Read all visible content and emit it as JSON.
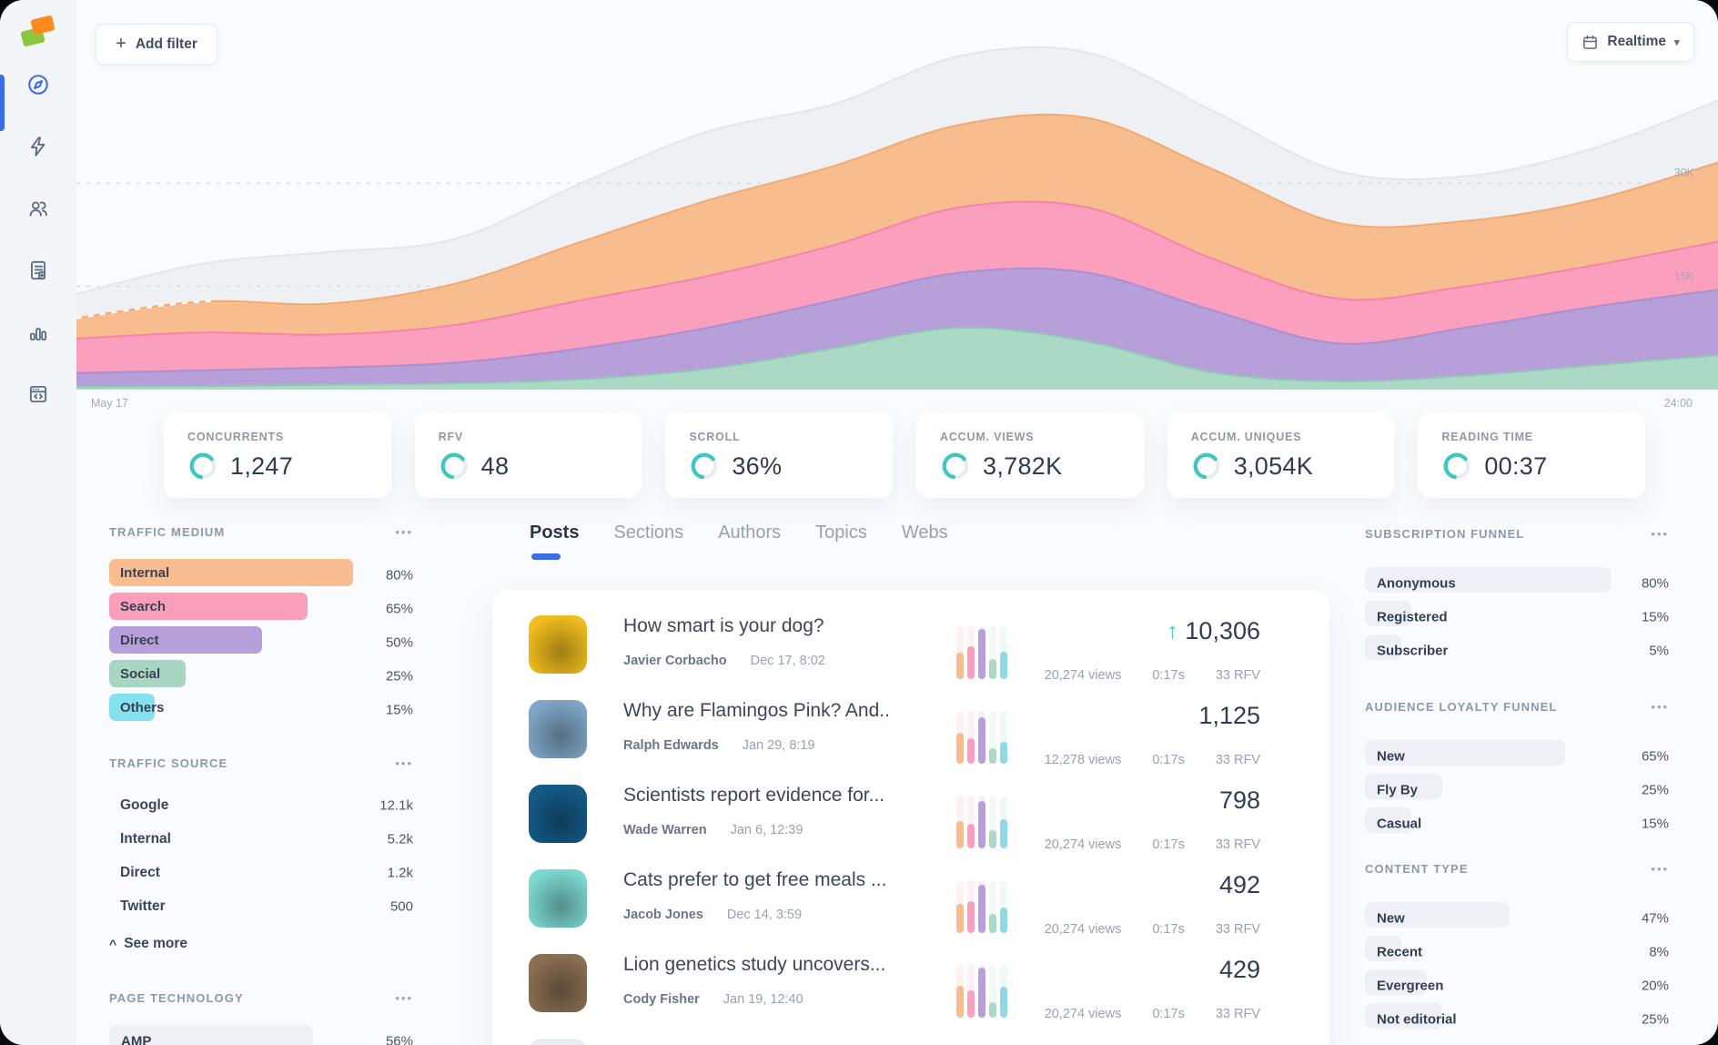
{
  "window": {
    "add_filter": "Add filter",
    "realtime": "Realtime"
  },
  "icons": {
    "plus": "+",
    "caret_down": "▾",
    "more_options": "•••",
    "see_more_caret": "^",
    "trend_up": "↑"
  },
  "accent": {
    "teal": "#3ec6c0",
    "blue": "#3a6ce8"
  },
  "sidebar": {
    "items": [
      {
        "id": "discover",
        "icon": "compass-icon",
        "active": true
      },
      {
        "id": "boost",
        "icon": "lightning-icon",
        "active": false
      },
      {
        "id": "audience",
        "icon": "users-icon",
        "active": false
      },
      {
        "id": "content",
        "icon": "article-icon",
        "active": false
      },
      {
        "id": "analytics",
        "icon": "bar-chart-icon",
        "active": false
      },
      {
        "id": "developer",
        "icon": "code-window-icon",
        "active": false
      }
    ]
  },
  "chart_data": {
    "type": "area",
    "stacked": true,
    "y_max": 50,
    "unit": "K",
    "grid": "dashed-horizontal",
    "y_ticks": [
      {
        "label": "30K",
        "value": 30
      },
      {
        "label": "15K",
        "value": 15
      }
    ],
    "x_start_label": "May 17",
    "x_end_label": "24:00",
    "series": [
      {
        "name": "social",
        "color": "#abd9c6",
        "stroke": "#8fcab2",
        "values": [
          0.4,
          0.5,
          0.7,
          0.9,
          1.5,
          3,
          6,
          9,
          7,
          2.5,
          1.2,
          2,
          3.5,
          5
        ]
      },
      {
        "name": "direct",
        "color": "#b7a0da",
        "stroke": "#a98fd1",
        "values": [
          2,
          2.3,
          2.5,
          3,
          4.5,
          6,
          7,
          8,
          10,
          9,
          5.5,
          7,
          8.5,
          9.5
        ]
      },
      {
        "name": "search",
        "color": "#fb9fbe",
        "stroke": "#f783ac",
        "values": [
          5,
          5.5,
          4.8,
          5.5,
          7,
          7.5,
          8,
          9.5,
          9.5,
          7.5,
          6.5,
          6,
          6,
          7
        ]
      },
      {
        "name": "internal",
        "color": "#f8bd8e",
        "stroke": "#f3a96f",
        "values": [
          3,
          4.5,
          4.5,
          6,
          8.5,
          11,
          11.5,
          12,
          13,
          13,
          11,
          9.5,
          9.5,
          11.5
        ]
      },
      {
        "name": "others",
        "color": "#eef0f4",
        "stroke": "#e3e6ec",
        "values": [
          3.5,
          5.5,
          7.5,
          6.5,
          8.5,
          10,
          9,
          10,
          9.5,
          8.5,
          7.5,
          6.5,
          7.5,
          9
        ]
      }
    ]
  },
  "kpis": [
    {
      "label": "CONCURRENTS",
      "value": "1,247"
    },
    {
      "label": "RFV",
      "value": "48"
    },
    {
      "label": "SCROLL",
      "value": "36%"
    },
    {
      "label": "ACCUM. VIEWS",
      "value": "3,782K"
    },
    {
      "label": "ACCUM. UNIQUES",
      "value": "3,054K"
    },
    {
      "label": "READING TIME",
      "value": "00:37"
    }
  ],
  "traffic_medium": {
    "title": "TRAFFIC MEDIUM",
    "items": [
      {
        "label": "Internal",
        "value": "80%",
        "pct": 80,
        "color": "#f9bd92"
      },
      {
        "label": "Search",
        "value": "65%",
        "pct": 65,
        "color": "#fa9ebc"
      },
      {
        "label": "Direct",
        "value": "50%",
        "pct": 50,
        "color": "#b7a0da"
      },
      {
        "label": "Social",
        "value": "25%",
        "pct": 25,
        "color": "#a9d6c2"
      },
      {
        "label": "Others",
        "value": "15%",
        "pct": 15,
        "color": "#85e1ef"
      }
    ]
  },
  "traffic_source": {
    "title": "TRAFFIC SOURCE",
    "see_more": "See more",
    "items": [
      {
        "label": "Google",
        "value": "12.1k"
      },
      {
        "label": "Internal",
        "value": "5.2k"
      },
      {
        "label": "Direct",
        "value": "1.2k"
      },
      {
        "label": "Twitter",
        "value": "500"
      }
    ]
  },
  "page_technology": {
    "title": "PAGE TECHNOLOGY",
    "items": [
      {
        "label": "AMP",
        "value": "56%",
        "pct": 56
      }
    ]
  },
  "content_tabs": {
    "items": [
      {
        "label": "Posts",
        "active": true
      },
      {
        "label": "Sections",
        "active": false
      },
      {
        "label": "Authors",
        "active": false
      },
      {
        "label": "Topics",
        "active": false
      },
      {
        "label": "Webs",
        "active": false
      }
    ]
  },
  "posts": [
    {
      "title": "How smart is your dog?",
      "author": "Javier Corbacho",
      "date": "Dec 17, 8:02",
      "views": "20,274 views",
      "time": "0:17s",
      "rfv": "33 RFV",
      "value": "10,306",
      "trend": "up",
      "thumb_color": "#f0bd1e",
      "bars": [
        50,
        62,
        95,
        38,
        52
      ]
    },
    {
      "title": "Why are Flamingos Pink? And..",
      "author": "Ralph Edwards",
      "date": "Jan 29, 8:19",
      "views": "12,278 views",
      "time": "0:17s",
      "rfv": "33 RFV",
      "value": "1,125",
      "trend": null,
      "thumb_color": "#7fa6c6",
      "bars": [
        58,
        48,
        88,
        30,
        42
      ]
    },
    {
      "title": "Scientists report evidence for...",
      "author": "Wade Warren",
      "date": "Jan 6, 12:39",
      "views": "20,274 views",
      "time": "0:17s",
      "rfv": "33 RFV",
      "value": "798",
      "trend": null,
      "thumb_color": "#145a86",
      "bars": [
        52,
        46,
        90,
        34,
        55
      ]
    },
    {
      "title": "Cats prefer to get free meals ...",
      "author": "Jacob Jones",
      "date": "Dec 14, 3:59",
      "views": "20,274 views",
      "time": "0:17s",
      "rfv": "33 RFV",
      "value": "492",
      "trend": null,
      "thumb_color": "#7cd8d0",
      "bars": [
        55,
        60,
        92,
        36,
        48
      ]
    },
    {
      "title": "Lion genetics study uncovers...",
      "author": "Cody Fisher",
      "date": "Jan 19, 12:40",
      "views": "20,274 views",
      "time": "0:17s",
      "rfv": "33 RFV",
      "value": "429",
      "trend": null,
      "thumb_color": "#8a6f52",
      "bars": [
        60,
        52,
        95,
        30,
        58
      ]
    }
  ],
  "subscription_funnel": {
    "title": "SUBSCRIPTION FUNNEL",
    "items": [
      {
        "label": "Anonymous",
        "value": "80%",
        "pct": 80
      },
      {
        "label": "Registered",
        "value": "15%",
        "pct": 15
      },
      {
        "label": "Subscriber",
        "value": "5%",
        "pct": 5
      }
    ]
  },
  "audience_loyalty_funnel": {
    "title": "AUDIENCE LOYALTY FUNNEL",
    "items": [
      {
        "label": "New",
        "value": "65%",
        "pct": 65
      },
      {
        "label": "Fly By",
        "value": "25%",
        "pct": 25
      },
      {
        "label": "Casual",
        "value": "15%",
        "pct": 15
      }
    ]
  },
  "content_type": {
    "title": "CONTENT TYPE",
    "items": [
      {
        "label": "New",
        "value": "47%",
        "pct": 47
      },
      {
        "label": "Recent",
        "value": "8%",
        "pct": 8
      },
      {
        "label": "Evergreen",
        "value": "20%",
        "pct": 20
      },
      {
        "label": "Not editorial",
        "value": "25%",
        "pct": 25
      }
    ]
  }
}
